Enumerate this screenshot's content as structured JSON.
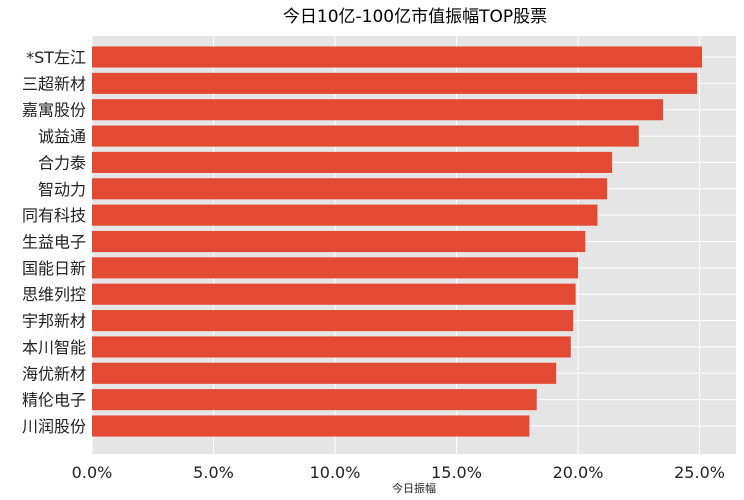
{
  "chart_data": {
    "type": "bar",
    "orientation": "horizontal",
    "title": "今日10亿-100亿市值振幅TOP股票",
    "xlabel": "今日振幅",
    "ylabel": "",
    "categories": [
      "*ST左江",
      "三超新材",
      "嘉寓股份",
      "诚益通",
      "合力泰",
      "智动力",
      "同有科技",
      "生益电子",
      "国能日新",
      "思维列控",
      "宇邦新材",
      "本川智能",
      "海优新材",
      "精伦电子",
      "川润股份"
    ],
    "values": [
      25.1,
      24.9,
      23.5,
      22.5,
      21.4,
      21.2,
      20.8,
      20.3,
      20.0,
      19.9,
      19.8,
      19.7,
      19.1,
      18.3,
      18.0
    ],
    "value_unit": "%",
    "xlim": [
      0,
      26.5
    ],
    "xticks": [
      "0.0%",
      "5.0%",
      "10.0%",
      "15.0%",
      "20.0%",
      "25.0%"
    ],
    "xtick_values": [
      0,
      5,
      10,
      15,
      20,
      25
    ],
    "grid": true,
    "legend": "none",
    "colors": {
      "bar": "#E24A33",
      "plot_bg": "#E5E5E5",
      "grid": "#FFFFFF"
    }
  }
}
